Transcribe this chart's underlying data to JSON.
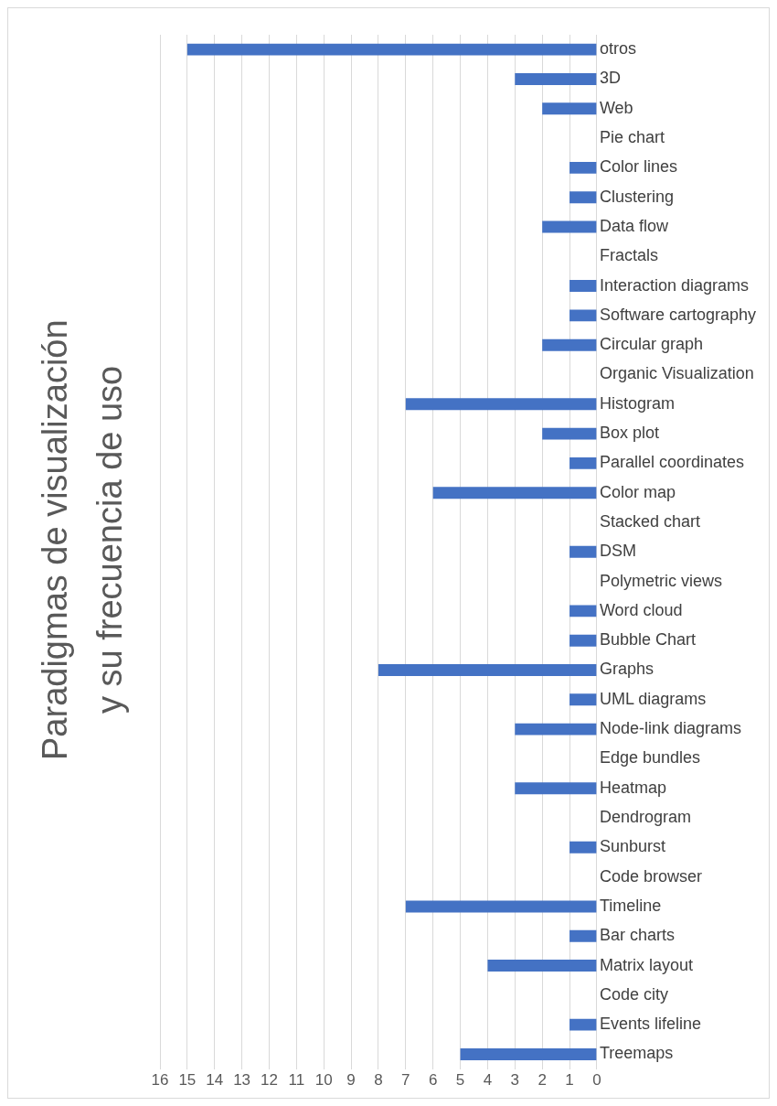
{
  "chart_data": {
    "type": "bar",
    "orientation": "horizontal",
    "title": "Paradigmas de visualización\ny su frecuencia de uso",
    "categories": [
      "otros",
      "3D",
      "Web",
      "Pie chart",
      "Color lines",
      "Clustering",
      "Data flow",
      "Fractals",
      "Interaction diagrams",
      "Software cartography",
      "Circular graph",
      "Organic Visualization",
      "Histogram",
      "Box plot",
      "Parallel coordinates",
      "Color map",
      "Stacked chart",
      "DSM",
      "Polymetric views",
      "Word cloud",
      "Bubble Chart",
      "Graphs",
      "UML diagrams",
      "Node-link diagrams",
      "Edge bundles",
      "Heatmap",
      "Dendrogram",
      "Sunburst",
      "Code browser",
      "Timeline",
      "Bar charts",
      "Matrix layout",
      "Code city",
      "Events lifeline",
      "Treemaps"
    ],
    "values": [
      15,
      3,
      2,
      0,
      1,
      1,
      2,
      0,
      1,
      1,
      2,
      0,
      7,
      2,
      1,
      6,
      0,
      1,
      0,
      1,
      1,
      8,
      1,
      3,
      0,
      3,
      0,
      1,
      0,
      7,
      1,
      4,
      0,
      1,
      5
    ],
    "color": "#4472c4",
    "xlim": [
      16,
      0
    ],
    "xticks": [
      0,
      1,
      2,
      3,
      4,
      5,
      6,
      7,
      8,
      9,
      10,
      11,
      12,
      13,
      14,
      15,
      16
    ],
    "grid": "x",
    "legend": false
  }
}
